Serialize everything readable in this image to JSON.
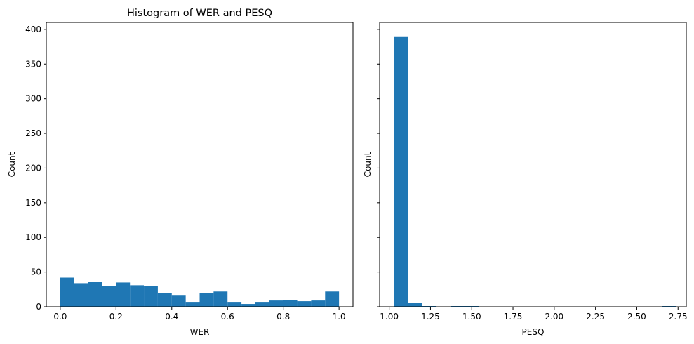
{
  "chart_data": [
    {
      "type": "bar",
      "subtype": "histogram",
      "title": "Histogram of WER and PESQ",
      "xlabel": "WER",
      "ylabel": "Count",
      "xlim": [
        -0.05,
        1.05
      ],
      "ylim": [
        0,
        410
      ],
      "color": "#1f77b4",
      "grid": false,
      "bin_edges": [
        0.0,
        0.05,
        0.1,
        0.15,
        0.2,
        0.25,
        0.3,
        0.35,
        0.4,
        0.45,
        0.5,
        0.55,
        0.6,
        0.65,
        0.7,
        0.75,
        0.8,
        0.85,
        0.9,
        0.95,
        1.0
      ],
      "values": [
        42,
        34,
        36,
        30,
        35,
        31,
        30,
        20,
        17,
        7,
        20,
        22,
        7,
        4,
        7,
        9,
        10,
        8,
        9,
        22
      ],
      "xticks": [
        0.0,
        0.2,
        0.4,
        0.6,
        0.8,
        1.0
      ],
      "xtick_labels": [
        "0.0",
        "0.2",
        "0.4",
        "0.6",
        "0.8",
        "1.0"
      ],
      "yticks": [
        0,
        50,
        100,
        150,
        200,
        250,
        300,
        350,
        400
      ],
      "ytick_labels": [
        "0",
        "50",
        "100",
        "150",
        "200",
        "250",
        "300",
        "350",
        "400"
      ]
    },
    {
      "type": "bar",
      "subtype": "histogram",
      "title": "",
      "xlabel": "PESQ",
      "ylabel": "Count",
      "xlim": [
        0.942,
        2.8
      ],
      "ylim": [
        0,
        410
      ],
      "color": "#1f77b4",
      "grid": false,
      "bin_edges": [
        1.03,
        1.1155,
        1.201,
        1.2865,
        1.372,
        1.4575,
        1.543,
        1.6285,
        1.714,
        1.7995,
        1.885,
        1.9705,
        2.056,
        2.1415,
        2.227,
        2.3125,
        2.398,
        2.4835,
        2.569,
        2.6545,
        2.74
      ],
      "values": [
        390,
        6,
        1,
        0,
        1,
        1,
        0,
        0,
        0,
        0,
        0,
        0,
        0,
        0,
        0,
        0,
        0,
        0,
        0,
        1
      ],
      "xticks": [
        1.0,
        1.25,
        1.5,
        1.75,
        2.0,
        2.25,
        2.5,
        2.75
      ],
      "xtick_labels": [
        "1.00",
        "1.25",
        "1.50",
        "1.75",
        "2.00",
        "2.25",
        "2.50",
        "2.75"
      ],
      "yticks": [
        0,
        50,
        100,
        150,
        200,
        250,
        300,
        350,
        400
      ],
      "ytick_labels": [],
      "shared_y": true
    }
  ]
}
